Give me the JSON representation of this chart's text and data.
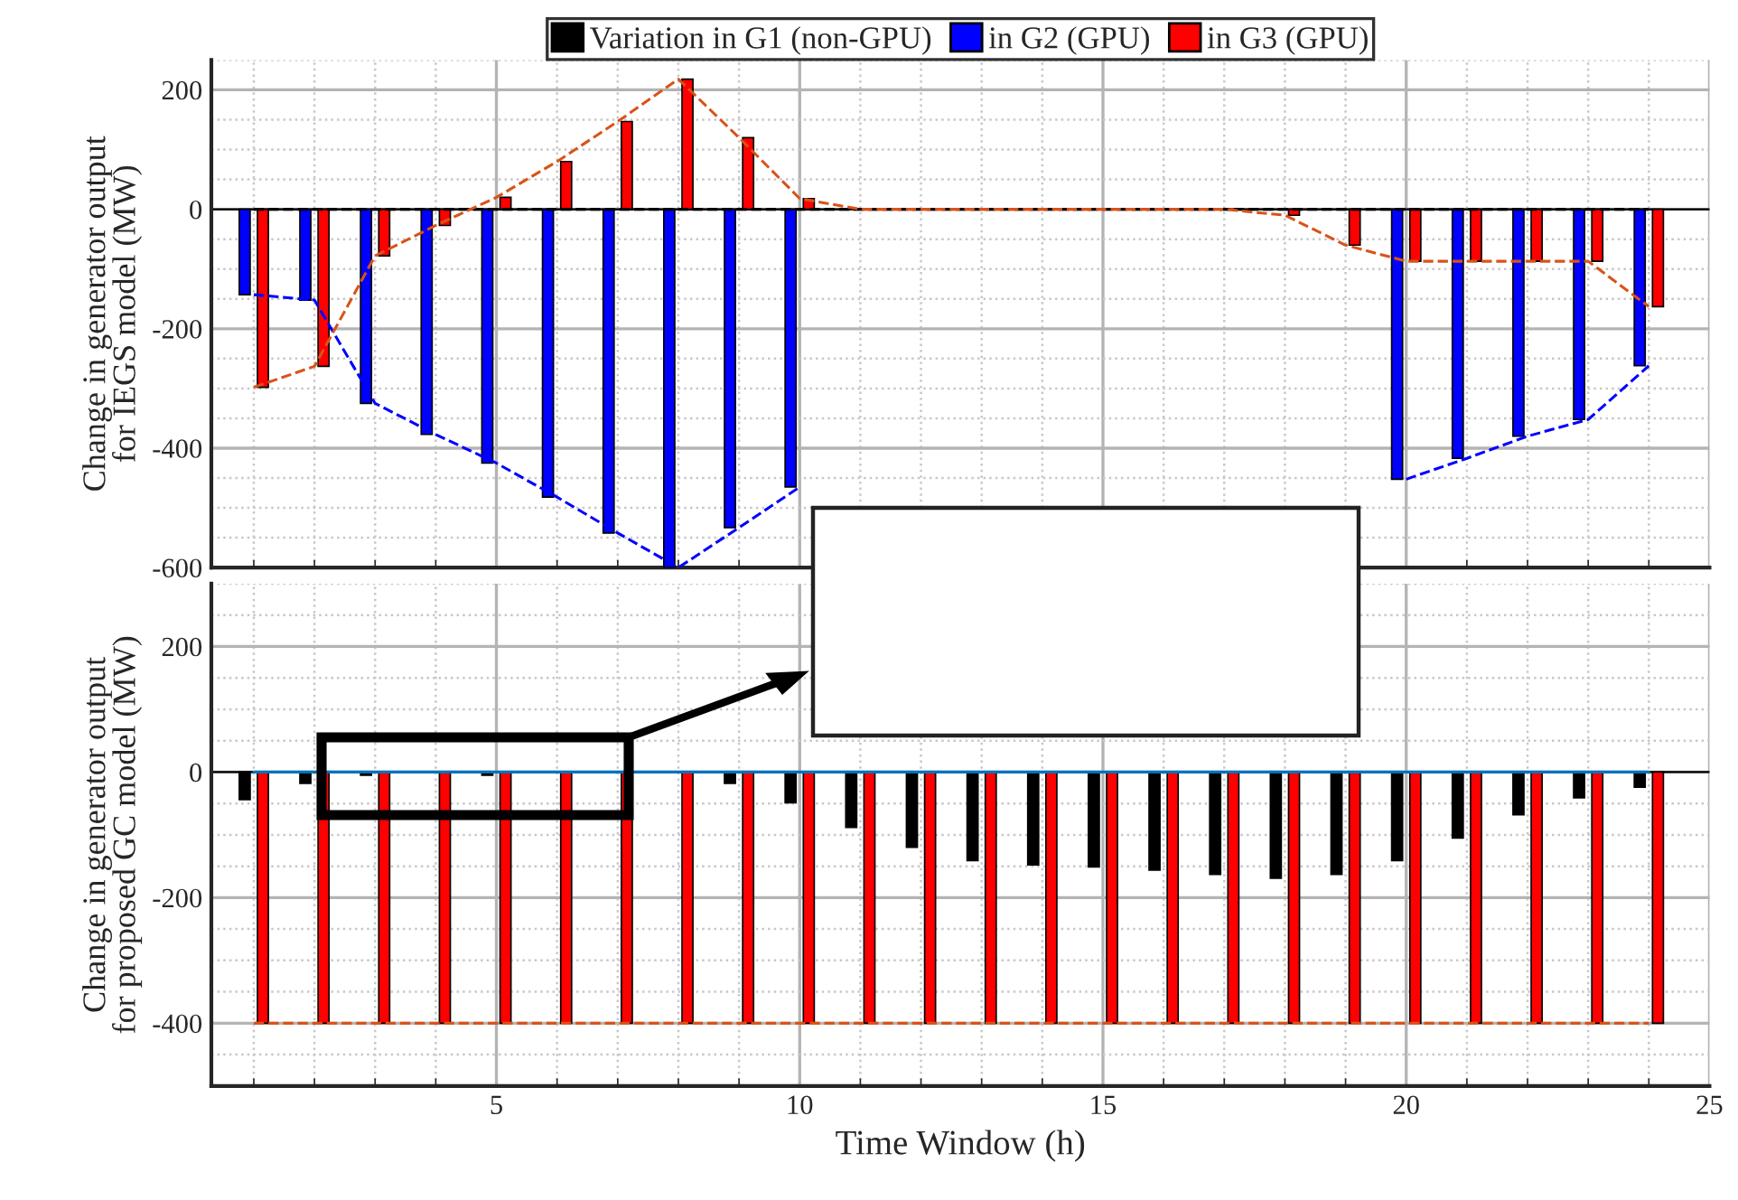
{
  "chart_data": [
    {
      "type": "bar",
      "ylabel": "Change in generator output\nfor IEGS model (MW)",
      "x": [
        1,
        2,
        3,
        4,
        5,
        6,
        7,
        8,
        9,
        10,
        11,
        12,
        13,
        14,
        15,
        16,
        17,
        18,
        19,
        20,
        21,
        22,
        23,
        24
      ],
      "xlim": [
        0.3,
        25
      ],
      "xticks": [
        5,
        10,
        15,
        20,
        25
      ],
      "ylim": [
        -600,
        250
      ],
      "yticks": [
        -600,
        -400,
        -200,
        0,
        200
      ],
      "tick_labels": "y",
      "grid": true,
      "legend": "top",
      "series": [
        {
          "name": "Variation in G1 (non-GPU)",
          "type": "line",
          "line_style": "dashed",
          "color": "#000000",
          "values": [
            0,
            0,
            0,
            0,
            0,
            0,
            0,
            0,
            0,
            0,
            0,
            0,
            0,
            0,
            0,
            0,
            0,
            0,
            0,
            0,
            0,
            0,
            0,
            0
          ]
        },
        {
          "name": "in G2 (GPU)",
          "color": "#0000ff",
          "values": [
            -143,
            -152,
            -325,
            -377,
            -425,
            -482,
            -542,
            -600,
            -533,
            -465,
            null,
            null,
            null,
            null,
            null,
            null,
            null,
            null,
            null,
            -452,
            -417,
            -380,
            -352,
            -262
          ]
        },
        {
          "name": "in G3 (GPU)",
          "color": "#ff0000",
          "values": [
            -298,
            -263,
            -78,
            -27,
            20,
            80,
            147,
            218,
            120,
            18,
            0,
            0,
            0,
            0,
            0,
            0,
            0,
            -10,
            -60,
            -87,
            -87,
            -87,
            -87,
            -163
          ]
        },
        {
          "type": "line",
          "line_style": "dashed",
          "color": "#0000ff",
          "values": [
            -143,
            -152,
            -325,
            -377,
            -425,
            -482,
            -542,
            -600,
            -533,
            -465,
            null,
            null,
            null,
            null,
            null,
            null,
            null,
            null,
            null,
            -452,
            -417,
            -380,
            -352,
            -262
          ]
        },
        {
          "type": "line",
          "line_style": "dashed",
          "color": "#d95319",
          "values": [
            -298,
            -263,
            -78,
            -27,
            20,
            80,
            147,
            218,
            120,
            18,
            0,
            0,
            0,
            0,
            0,
            0,
            0,
            -10,
            -60,
            -87,
            -87,
            -87,
            -87,
            -163
          ]
        }
      ]
    },
    {
      "type": "bar",
      "xlabel": "Time Window (h)",
      "ylabel": "Change in generator output\nfor proposed GC model (MW)",
      "x": [
        1,
        2,
        3,
        4,
        5,
        6,
        7,
        8,
        9,
        10,
        11,
        12,
        13,
        14,
        15,
        16,
        17,
        18,
        19,
        20,
        21,
        22,
        23,
        24
      ],
      "xlim": [
        0.3,
        25
      ],
      "xticks": [
        5,
        10,
        15,
        20,
        25
      ],
      "ylim": [
        -500,
        300
      ],
      "yticks": [
        -400,
        -200,
        0,
        200
      ],
      "grid": true,
      "series": [
        {
          "color": "#000000",
          "values": [
            -44,
            -18,
            -5,
            null,
            -5,
            null,
            null,
            0,
            -18,
            -49,
            -88,
            -120,
            -141,
            -148,
            -151,
            -156,
            -163,
            -169,
            -163,
            -141,
            -105,
            -68,
            -41,
            -24
          ]
        },
        {
          "color": "#ff0000",
          "values": [
            -400,
            -400,
            -400,
            -400,
            -400,
            -400,
            -400,
            -400,
            -400,
            -400,
            -400,
            -400,
            -400,
            -400,
            -400,
            -400,
            -400,
            -400,
            -400,
            -400,
            -400,
            -400,
            -400,
            -400
          ]
        },
        {
          "type": "line",
          "line_style": "solid",
          "color": "#0072bd",
          "values": [
            0,
            0,
            0,
            0,
            0,
            0,
            0,
            0,
            0,
            0,
            0,
            0,
            0,
            0,
            0,
            0,
            0,
            0,
            0,
            0,
            0,
            0,
            0,
            0
          ]
        },
        {
          "type": "line",
          "line_style": "dashed",
          "color": "#d95319",
          "values": [
            -400,
            -400,
            -400,
            -400,
            -400,
            -400,
            -400,
            -400,
            -400,
            -400,
            -400,
            -400,
            -400,
            -400,
            -400,
            -400,
            -400,
            -400,
            -400,
            -400,
            -400,
            -400,
            -400,
            -400
          ]
        }
      ]
    }
  ]
}
